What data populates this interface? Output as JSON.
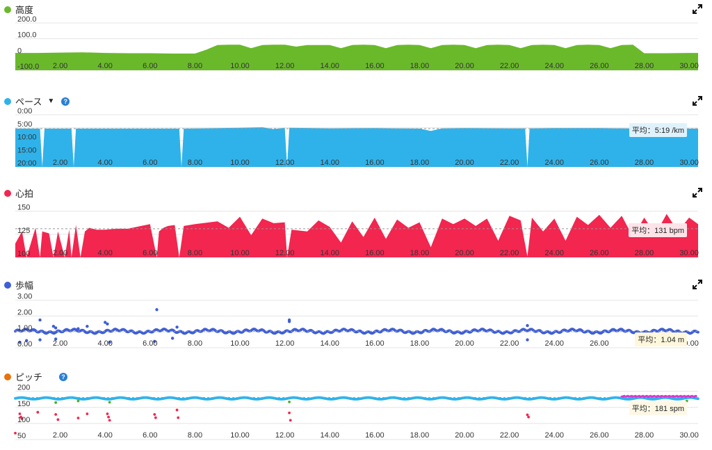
{
  "chart_data": [
    {
      "id": "elev",
      "type": "area",
      "title": "高度",
      "color": "#6ab92b",
      "x_ticks": [
        "2.00",
        "4.00",
        "6.00",
        "8.00",
        "10.00",
        "12.00",
        "14.00",
        "16.00",
        "18.00",
        "20.00",
        "22.00",
        "24.00",
        "26.00",
        "28.00",
        "30.00"
      ],
      "y_ticks": [
        "200.0",
        "100.0",
        "0",
        "-100.0"
      ],
      "ylim": [
        -100,
        200
      ],
      "xlim": [
        0,
        30.4
      ],
      "grid": true,
      "x": [
        0,
        1,
        2,
        3,
        4,
        5,
        6,
        7,
        8,
        8.5,
        9,
        9.5,
        10,
        10.5,
        11,
        11.5,
        12,
        12.5,
        13,
        13.5,
        14,
        14.5,
        15,
        15.5,
        16,
        16.5,
        17,
        17.5,
        18,
        18.5,
        19,
        19.5,
        20,
        20.5,
        21,
        21.5,
        22,
        22.5,
        23,
        23.5,
        24,
        24.5,
        25,
        25.5,
        26,
        26.5,
        27,
        27.5,
        28,
        29,
        30,
        30.4
      ],
      "y": [
        10,
        10,
        12,
        14,
        10,
        8,
        8,
        6,
        6,
        30,
        60,
        62,
        62,
        40,
        60,
        62,
        62,
        50,
        60,
        60,
        60,
        40,
        60,
        62,
        60,
        40,
        60,
        62,
        60,
        40,
        60,
        62,
        60,
        40,
        60,
        62,
        60,
        40,
        60,
        62,
        60,
        40,
        60,
        62,
        60,
        40,
        60,
        62,
        8,
        8,
        10,
        10
      ]
    },
    {
      "id": "pace",
      "type": "area",
      "title": "ペース",
      "color": "#2fb2ea",
      "caret": "▼",
      "help": "?",
      "x_ticks": [
        "2.00",
        "4.00",
        "6.00",
        "8.00",
        "10.00",
        "12.00",
        "14.00",
        "16.00",
        "18.00",
        "20.00",
        "22.00",
        "24.00",
        "26.00",
        "28.00",
        "30.00"
      ],
      "y_ticks": [
        "0:00",
        "5:00",
        "10:00",
        "15:00",
        "20:00"
      ],
      "ylim": [
        0,
        20
      ],
      "xlim": [
        0,
        30.4
      ],
      "grid": true,
      "inverted": true,
      "x": [
        0,
        1.1,
        1.2,
        1.3,
        2.5,
        2.6,
        2.7,
        7.3,
        7.4,
        7.5,
        10,
        11,
        11.5,
        12,
        12.1,
        12.2,
        14,
        16,
        18,
        18.5,
        19,
        20,
        22,
        22.7,
        22.8,
        22.9,
        24,
        26,
        28,
        30.4
      ],
      "y": [
        5.3,
        5.3,
        20,
        5.3,
        5.3,
        20,
        5.3,
        5.3,
        20,
        5.3,
        5.0,
        4.8,
        5.5,
        5.0,
        20,
        5.0,
        5.2,
        5.1,
        5.3,
        6.2,
        5.2,
        5.1,
        5.2,
        5.2,
        20,
        5.2,
        5.1,
        5.1,
        5.3,
        5.3
      ],
      "average_label": "平均：5:19 /km",
      "average": 5.32
    },
    {
      "id": "hr",
      "type": "area",
      "title": "心拍",
      "color": "#f2264f",
      "x_ticks": [
        "2.00",
        "4.00",
        "6.00",
        "8.00",
        "10.00",
        "12.00",
        "14.00",
        "16.00",
        "18.00",
        "20.00",
        "22.00",
        "24.00",
        "26.00",
        "28.00",
        "30.00"
      ],
      "y_ticks": [
        "150",
        "125",
        "100"
      ],
      "ylim": [
        100,
        155
      ],
      "xlim": [
        0,
        30.4
      ],
      "grid": true,
      "x": [
        0,
        0.3,
        0.5,
        0.9,
        1.1,
        1.2,
        1.5,
        1.7,
        1.9,
        2.2,
        2.4,
        2.5,
        2.7,
        2.9,
        3.1,
        3.3,
        3.6,
        4.0,
        4.5,
        5,
        6,
        6.3,
        6.4,
        6.6,
        6.8,
        7.1,
        7.3,
        7.5,
        8,
        9,
        9.5,
        10,
        10.5,
        11,
        11.5,
        12,
        12.1,
        12.3,
        13,
        13.5,
        14,
        14.5,
        15,
        15.5,
        16,
        16.5,
        17,
        17.5,
        18,
        18.5,
        19,
        19.5,
        20,
        20.5,
        21,
        21.5,
        22,
        22.5,
        22.8,
        23,
        23.5,
        24,
        24.5,
        25,
        25.5,
        26,
        26.5,
        27,
        27.5,
        28,
        28.5,
        29,
        29.5,
        30,
        30.4
      ],
      "y": [
        115,
        128,
        100,
        132,
        100,
        128,
        126,
        100,
        128,
        100,
        130,
        100,
        135,
        100,
        128,
        132,
        130,
        130,
        131,
        131,
        136,
        100,
        128,
        132,
        134,
        135,
        100,
        134,
        136,
        139,
        132,
        144,
        124,
        142,
        137,
        138,
        100,
        130,
        128,
        140,
        133,
        116,
        139,
        122,
        143,
        120,
        141,
        132,
        138,
        111,
        142,
        136,
        142,
        134,
        142,
        118,
        145,
        140,
        101,
        143,
        128,
        142,
        118,
        144,
        135,
        146,
        132,
        145,
        122,
        143,
        125,
        147,
        128,
        143,
        136
      ],
      "average_label": "平均：131 bpm",
      "average": 131
    },
    {
      "id": "stride",
      "type": "scatter",
      "title": "歩幅",
      "color": "#3f5fd6",
      "x_ticks": [
        "2.00",
        "4.00",
        "6.00",
        "8.00",
        "10.00",
        "12.00",
        "14.00",
        "16.00",
        "18.00",
        "20.00",
        "22.00",
        "24.00",
        "26.00",
        "28.00",
        "30.00"
      ],
      "y_ticks": [
        "3.00",
        "2.00",
        "1.00",
        "0.00"
      ],
      "ylim": [
        0,
        3.2
      ],
      "xlim": [
        0,
        30.4
      ],
      "grid": true,
      "base": 1.04,
      "amplitude": 0.14,
      "outliers": [
        [
          1.1,
          1.75
        ],
        [
          1.7,
          1.35
        ],
        [
          1.8,
          1.25
        ],
        [
          2.8,
          1.2
        ],
        [
          3.2,
          1.35
        ],
        [
          4.0,
          1.6
        ],
        [
          4.1,
          1.5
        ],
        [
          6.3,
          2.4
        ],
        [
          7.2,
          1.3
        ],
        [
          12.2,
          1.75
        ],
        [
          12.2,
          1.65
        ],
        [
          22.8,
          1.4
        ],
        [
          0.2,
          0.35
        ],
        [
          0.5,
          0.45
        ],
        [
          1.1,
          0.5
        ],
        [
          1.8,
          0.55
        ],
        [
          4.2,
          0.35
        ],
        [
          6.2,
          0.4
        ],
        [
          7.0,
          0.6
        ],
        [
          22.8,
          0.5
        ]
      ],
      "average_label": "平均：1.04 m",
      "average": 1.04
    },
    {
      "id": "cadence",
      "type": "scatter",
      "title": "ピッチ",
      "color": "#e8720c",
      "help": "?",
      "x_ticks": [
        "2.00",
        "4.00",
        "6.00",
        "8.00",
        "10.00",
        "12.00",
        "14.00",
        "16.00",
        "18.00",
        "20.00",
        "22.00",
        "24.00",
        "26.00",
        "28.00",
        "30.00"
      ],
      "y_ticks": [
        "200",
        "150",
        "100",
        "50"
      ],
      "ylim": [
        50,
        210
      ],
      "xlim": [
        0,
        30.4
      ],
      "grid": true,
      "base": 181,
      "red_points": [
        [
          0.2,
          130
        ],
        [
          0.25,
          120
        ],
        [
          0.3,
          115
        ],
        [
          1.0,
          135
        ],
        [
          1.8,
          128
        ],
        [
          1.9,
          112
        ],
        [
          2.8,
          117
        ],
        [
          3.2,
          130
        ],
        [
          4.1,
          130
        ],
        [
          4.15,
          120
        ],
        [
          4.2,
          110
        ],
        [
          6.2,
          128
        ],
        [
          6.25,
          118
        ],
        [
          7.2,
          142
        ],
        [
          7.25,
          118
        ],
        [
          12.2,
          133
        ],
        [
          12.25,
          110
        ],
        [
          22.8,
          127
        ],
        [
          22.85,
          120
        ],
        [
          0,
          70
        ]
      ],
      "green_points": [
        [
          1.8,
          165
        ],
        [
          2.8,
          170
        ],
        [
          4.2,
          166
        ],
        [
          12.2,
          167
        ],
        [
          29.9,
          170
        ]
      ],
      "average_label": "平均：181 spm",
      "average": 181
    }
  ]
}
